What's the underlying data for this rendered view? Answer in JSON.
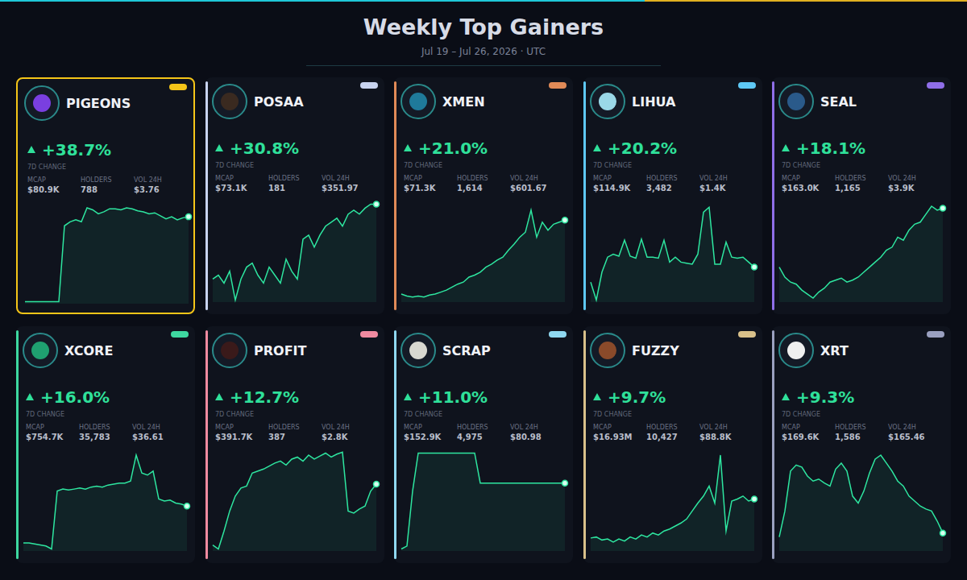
{
  "header": {
    "title": "Weekly Top Gainers",
    "subtitle": "Jul 19 – Jul 26, 2026 · UTC"
  },
  "chart_data": [
    {
      "type": "line",
      "title": "PIGEONS",
      "change": "+38.7%",
      "change_label": "7D CHANGE",
      "stats": [
        {
          "label": "MCAP",
          "value": "$80.9K"
        },
        {
          "label": "HOLDERS",
          "value": "788"
        },
        {
          "label": "VOL 24H",
          "value": "$3.76"
        }
      ],
      "x": [
        0,
        1,
        2,
        3,
        4,
        5,
        6,
        7,
        8,
        9,
        10,
        11,
        12,
        13,
        14,
        15,
        16,
        17,
        18,
        19,
        20,
        21,
        22,
        23,
        24,
        25,
        26,
        27,
        28,
        29
      ],
      "values": [
        2,
        2,
        2,
        2,
        2,
        2,
        2,
        78,
        82,
        84,
        82,
        96,
        94,
        90,
        92,
        95,
        95,
        94,
        96,
        95,
        93,
        92,
        90,
        91,
        88,
        85,
        87,
        84,
        86,
        87
      ],
      "xlim": [
        0,
        29
      ],
      "ylim": [
        0,
        100
      ],
      "color": "#2ee6a0",
      "grid": false,
      "tick_labels": false
    },
    {
      "type": "line",
      "title": "POSAA",
      "change": "+30.8%",
      "change_label": "7D CHANGE",
      "stats": [
        {
          "label": "MCAP",
          "value": "$73.1K"
        },
        {
          "label": "HOLDERS",
          "value": "181"
        },
        {
          "label": "VOL 24H",
          "value": "$351.97"
        }
      ],
      "x": [
        0,
        1,
        2,
        3,
        4,
        5,
        6,
        7,
        8,
        9,
        10,
        11,
        12,
        13,
        14,
        15,
        16,
        17,
        18,
        19,
        20,
        21,
        22,
        23,
        24,
        25,
        26,
        27,
        28,
        29
      ],
      "values": [
        23,
        27,
        19,
        31,
        2,
        23,
        35,
        39,
        27,
        19,
        35,
        27,
        19,
        43,
        31,
        23,
        63,
        67,
        55,
        67,
        76,
        80,
        84,
        76,
        88,
        92,
        88,
        94,
        98,
        98
      ],
      "xlim": [
        0,
        29
      ],
      "ylim": [
        0,
        100
      ],
      "color": "#2ee6a0",
      "grid": false,
      "tick_labels": false
    },
    {
      "type": "line",
      "title": "XMEN",
      "change": "+21.0%",
      "change_label": "7D CHANGE",
      "stats": [
        {
          "label": "MCAP",
          "value": "$71.3K"
        },
        {
          "label": "HOLDERS",
          "value": "1,614"
        },
        {
          "label": "VOL 24H",
          "value": "$601.67"
        }
      ],
      "x": [
        0,
        1,
        2,
        3,
        4,
        5,
        6,
        7,
        8,
        9,
        10,
        11,
        12,
        13,
        14,
        15,
        16,
        17,
        18,
        19,
        20,
        21,
        22,
        23,
        24,
        25,
        26,
        27,
        28,
        29
      ],
      "values": [
        8,
        6,
        5,
        6,
        5,
        7,
        8,
        10,
        12,
        15,
        18,
        20,
        25,
        27,
        30,
        35,
        38,
        42,
        45,
        52,
        58,
        65,
        70,
        92,
        65,
        80,
        72,
        78,
        80,
        82
      ],
      "xlim": [
        0,
        29
      ],
      "ylim": [
        0,
        100
      ],
      "color": "#2ee6a0",
      "grid": false,
      "tick_labels": false
    },
    {
      "type": "line",
      "title": "LIHUA",
      "change": "+20.2%",
      "change_label": "7D CHANGE",
      "stats": [
        {
          "label": "MCAP",
          "value": "$114.9K"
        },
        {
          "label": "HOLDERS",
          "value": "3,482"
        },
        {
          "label": "VOL 24H",
          "value": "$1.4K"
        }
      ],
      "x": [
        0,
        1,
        2,
        3,
        4,
        5,
        6,
        7,
        8,
        9,
        10,
        11,
        12,
        13,
        14,
        15,
        16,
        17,
        18,
        19,
        20,
        21,
        22,
        23,
        24,
        25,
        26,
        27,
        28,
        29
      ],
      "values": [
        20,
        2,
        30,
        45,
        48,
        46,
        62,
        46,
        44,
        63,
        45,
        45,
        44,
        62,
        40,
        45,
        40,
        39,
        38,
        48,
        90,
        95,
        38,
        38,
        60,
        45,
        44,
        45,
        40,
        35
      ],
      "xlim": [
        0,
        29
      ],
      "ylim": [
        0,
        100
      ],
      "color": "#2ee6a0",
      "grid": false,
      "tick_labels": false
    },
    {
      "type": "line",
      "title": "SEAL",
      "change": "+18.1%",
      "change_label": "7D CHANGE",
      "stats": [
        {
          "label": "MCAP",
          "value": "$163.0K"
        },
        {
          "label": "HOLDERS",
          "value": "1,165"
        },
        {
          "label": "VOL 24H",
          "value": "$3.9K"
        }
      ],
      "x": [
        0,
        1,
        2,
        3,
        4,
        5,
        6,
        7,
        8,
        9,
        10,
        11,
        12,
        13,
        14,
        15,
        16,
        17,
        18,
        19,
        20,
        21,
        22,
        23,
        24,
        25,
        26,
        27,
        28,
        29
      ],
      "values": [
        35,
        25,
        20,
        18,
        12,
        8,
        4,
        10,
        14,
        20,
        22,
        24,
        20,
        22,
        25,
        30,
        35,
        40,
        45,
        52,
        55,
        65,
        62,
        72,
        78,
        80,
        88,
        96,
        92,
        94
      ],
      "xlim": [
        0,
        29
      ],
      "ylim": [
        0,
        100
      ],
      "color": "#2ee6a0",
      "grid": false,
      "tick_labels": false
    },
    {
      "type": "line",
      "title": "XCORE",
      "change": "+16.0%",
      "change_label": "7D CHANGE",
      "stats": [
        {
          "label": "MCAP",
          "value": "$754.7K"
        },
        {
          "label": "HOLDERS",
          "value": "35,783"
        },
        {
          "label": "VOL 24H",
          "value": "$36.61"
        }
      ],
      "x": [
        0,
        1,
        2,
        3,
        4,
        5,
        6,
        7,
        8,
        9,
        10,
        11,
        12,
        13,
        14,
        15,
        16,
        17,
        18,
        19,
        20,
        21,
        22,
        23,
        24,
        25,
        26,
        27,
        28,
        29
      ],
      "values": [
        8,
        8,
        7,
        6,
        5,
        2,
        60,
        62,
        61,
        62,
        63,
        62,
        64,
        65,
        64,
        66,
        67,
        68,
        68,
        70,
        96,
        78,
        76,
        80,
        52,
        50,
        51,
        48,
        47,
        45
      ],
      "xlim": [
        0,
        29
      ],
      "ylim": [
        0,
        100
      ],
      "color": "#2ee6a0",
      "grid": false,
      "tick_labels": false
    },
    {
      "type": "line",
      "title": "PROFIT",
      "change": "+12.7%",
      "change_label": "7D CHANGE",
      "stats": [
        {
          "label": "MCAP",
          "value": "$391.7K"
        },
        {
          "label": "HOLDERS",
          "value": "387"
        },
        {
          "label": "VOL 24H",
          "value": "$2.8K"
        }
      ],
      "x": [
        0,
        1,
        2,
        3,
        4,
        5,
        6,
        7,
        8,
        9,
        10,
        11,
        12,
        13,
        14,
        15,
        16,
        17,
        18,
        19,
        20,
        21,
        22,
        23,
        24,
        25,
        26,
        27,
        28,
        29
      ],
      "values": [
        6,
        2,
        20,
        40,
        55,
        63,
        65,
        78,
        80,
        82,
        85,
        88,
        90,
        86,
        92,
        94,
        90,
        96,
        92,
        95,
        98,
        94,
        97,
        99,
        40,
        38,
        42,
        45,
        60,
        67
      ],
      "xlim": [
        0,
        29
      ],
      "ylim": [
        0,
        100
      ],
      "color": "#2ee6a0",
      "grid": false,
      "tick_labels": false
    },
    {
      "type": "line",
      "title": "SCRAP",
      "change": "+11.0%",
      "change_label": "7D CHANGE",
      "stats": [
        {
          "label": "MCAP",
          "value": "$152.9K"
        },
        {
          "label": "HOLDERS",
          "value": "4,975"
        },
        {
          "label": "VOL 24H",
          "value": "$80.98"
        }
      ],
      "x": [
        0,
        1,
        2,
        3,
        4,
        5,
        6,
        7,
        8,
        9,
        10,
        11,
        12,
        13,
        14,
        15,
        16,
        17,
        18,
        19,
        20,
        21,
        22,
        23,
        24,
        25,
        26,
        27,
        28,
        29
      ],
      "values": [
        2,
        5,
        60,
        98,
        98,
        98,
        98,
        98,
        98,
        98,
        98,
        98,
        98,
        98,
        68,
        68,
        68,
        68,
        68,
        68,
        68,
        68,
        68,
        68,
        68,
        68,
        68,
        68,
        68,
        68
      ],
      "xlim": [
        0,
        29
      ],
      "ylim": [
        0,
        100
      ],
      "color": "#2ee6a0",
      "grid": false,
      "tick_labels": false
    },
    {
      "type": "line",
      "title": "FUZZY",
      "change": "+9.7%",
      "change_label": "7D CHANGE",
      "stats": [
        {
          "label": "MCAP",
          "value": "$16.93M"
        },
        {
          "label": "HOLDERS",
          "value": "10,427"
        },
        {
          "label": "VOL 24H",
          "value": "$88.8K"
        }
      ],
      "x": [
        0,
        1,
        2,
        3,
        4,
        5,
        6,
        7,
        8,
        9,
        10,
        11,
        12,
        13,
        14,
        15,
        16,
        17,
        18,
        19,
        20,
        21,
        22,
        23,
        24,
        25,
        26,
        27,
        28,
        29
      ],
      "values": [
        13,
        14,
        11,
        12,
        9,
        12,
        10,
        14,
        12,
        16,
        14,
        18,
        16,
        20,
        22,
        25,
        28,
        32,
        40,
        48,
        55,
        65,
        48,
        96,
        20,
        50,
        52,
        55,
        50,
        52
      ],
      "xlim": [
        0,
        29
      ],
      "ylim": [
        0,
        100
      ],
      "color": "#2ee6a0",
      "grid": false,
      "tick_labels": false
    },
    {
      "type": "line",
      "title": "XRT",
      "change": "+9.3%",
      "change_label": "7D CHANGE",
      "stats": [
        {
          "label": "MCAP",
          "value": "$169.6K"
        },
        {
          "label": "HOLDERS",
          "value": "1,586"
        },
        {
          "label": "VOL 24H",
          "value": "$165.46"
        }
      ],
      "x": [
        0,
        1,
        2,
        3,
        4,
        5,
        6,
        7,
        8,
        9,
        10,
        11,
        12,
        13,
        14,
        15,
        16,
        17,
        18,
        19,
        20,
        21,
        22,
        23,
        24,
        25,
        26,
        27,
        28,
        29
      ],
      "values": [
        14,
        40,
        80,
        86,
        84,
        75,
        70,
        72,
        68,
        65,
        82,
        88,
        80,
        55,
        48,
        60,
        78,
        92,
        96,
        88,
        80,
        70,
        65,
        55,
        50,
        45,
        42,
        40,
        30,
        18
      ],
      "xlim": [
        0,
        29
      ],
      "ylim": [
        0,
        100
      ],
      "color": "#2ee6a0",
      "grid": false,
      "tick_labels": false
    }
  ]
}
